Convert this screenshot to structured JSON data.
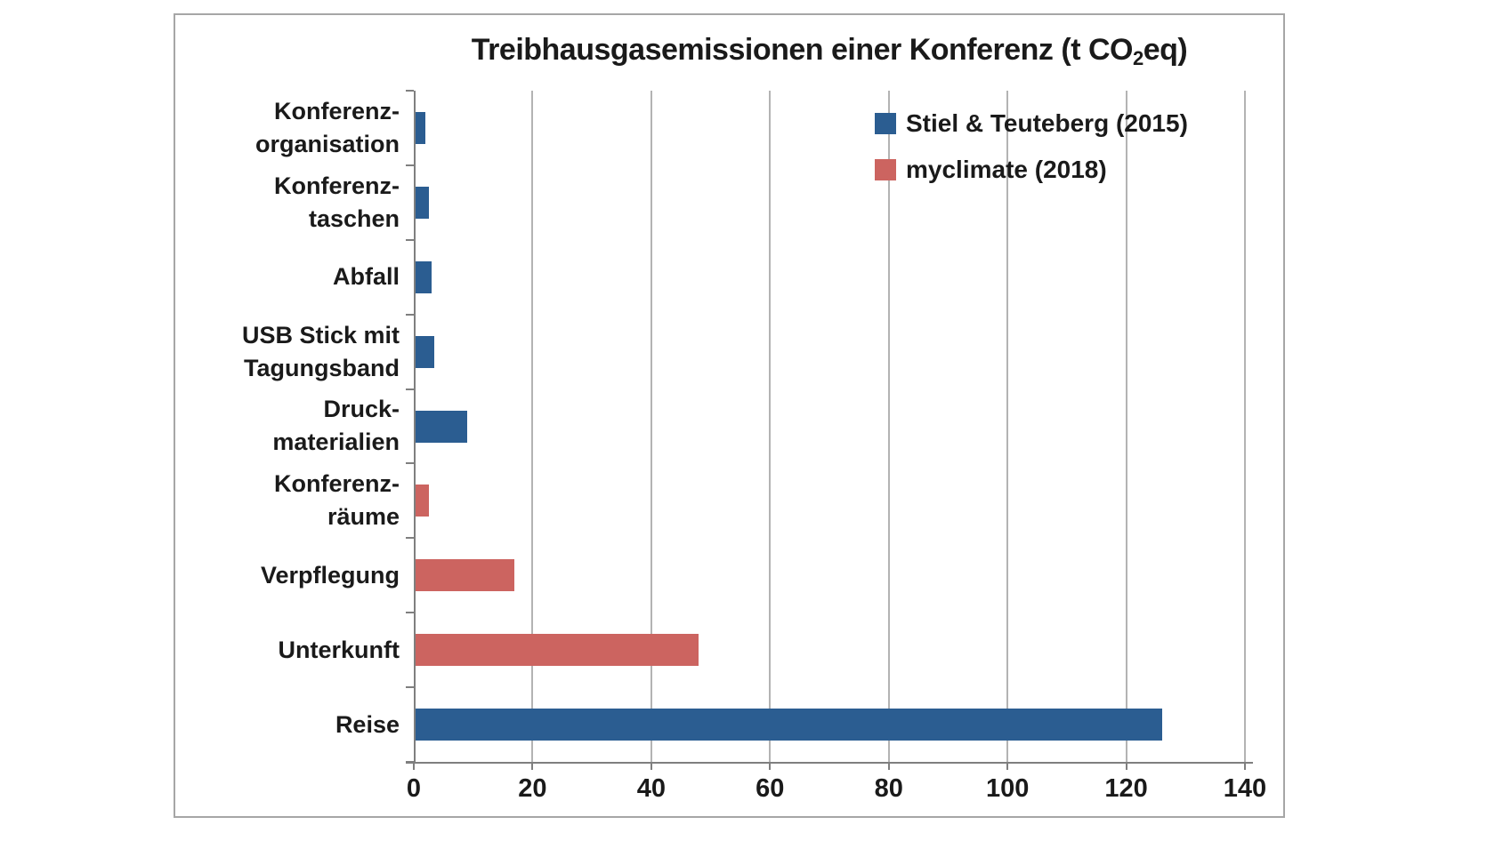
{
  "chart_data": {
    "type": "bar",
    "orientation": "horizontal",
    "title": "Treibhausgasemissionen einer Konferenz (t CO2eq)",
    "title_parts": {
      "before": "Treibhausgasemissionen einer Konferenz (t CO",
      "subscript": "2",
      "after": "eq)"
    },
    "categories": [
      "Konferenz-\norganisation",
      "Konferenz-\ntaschen",
      "Abfall",
      "USB Stick mit\nTagungsband",
      "Druck-\nmaterialien",
      "Konferenz-\nräume",
      "Verpflegung",
      "Unterkunft",
      "Reise"
    ],
    "series": [
      {
        "name": "Stiel & Teuteberg (2015)",
        "color": "#2b5d91",
        "values": [
          2,
          2.5,
          3,
          3.5,
          9,
          null,
          null,
          null,
          126
        ]
      },
      {
        "name": "myclimate (2018)",
        "color": "#cc6460",
        "values": [
          null,
          null,
          null,
          null,
          null,
          2.5,
          17,
          48,
          null
        ]
      }
    ],
    "xlim": [
      0,
      140
    ],
    "x_ticks": [
      0,
      20,
      40,
      60,
      80,
      100,
      120,
      140
    ],
    "grid": "vertical-gridlines-on",
    "legend_position": "top-right",
    "axis_color": "#7f7f7f",
    "gridline_color": "#b3b3b3",
    "frame_border_color": "#a6a6a6"
  }
}
